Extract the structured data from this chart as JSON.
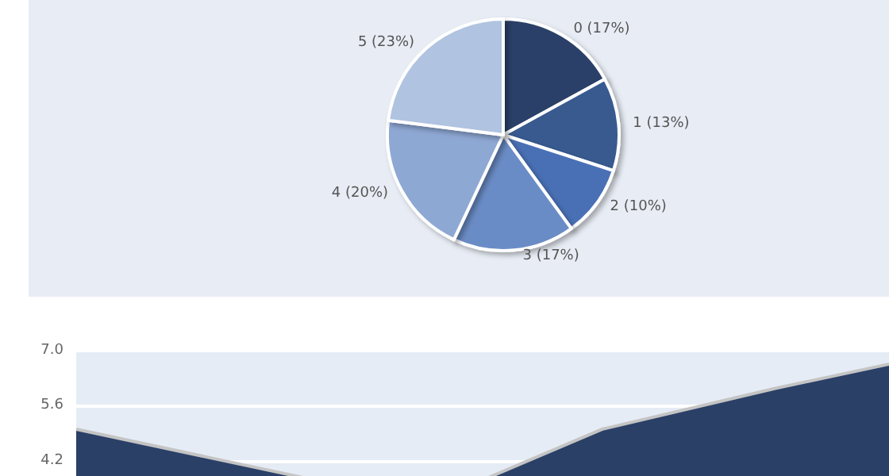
{
  "chart_data": [
    {
      "type": "pie",
      "categories": [
        "0",
        "1",
        "2",
        "3",
        "4",
        "5"
      ],
      "values": [
        17,
        13,
        10,
        17,
        20,
        23
      ],
      "colors": [
        "#2a4067",
        "#375a8f",
        "#4a6fb5",
        "#6a8cc6",
        "#8ea8d4",
        "#b0c3e0"
      ],
      "value_labels": [
        "(17%)",
        "(13%)",
        "(10%)",
        "(17%)",
        "(20%)",
        "(23%)"
      ],
      "legend": false
    },
    {
      "type": "area",
      "categories": [
        null,
        null,
        null,
        null,
        null,
        null
      ],
      "series": [
        {
          "color": "#2a4067",
          "values": [
            5.0,
            4.05,
            3.1,
            5.0,
            6.05,
            7.0
          ]
        }
      ],
      "ylim": [
        2.8,
        7.0
      ],
      "yticks": [
        4.2,
        5.6,
        {
          "value": 7.0,
          "label": "7.0"
        }
      ],
      "grid": "y",
      "tick_labels": "y",
      "legend": false
    }
  ]
}
